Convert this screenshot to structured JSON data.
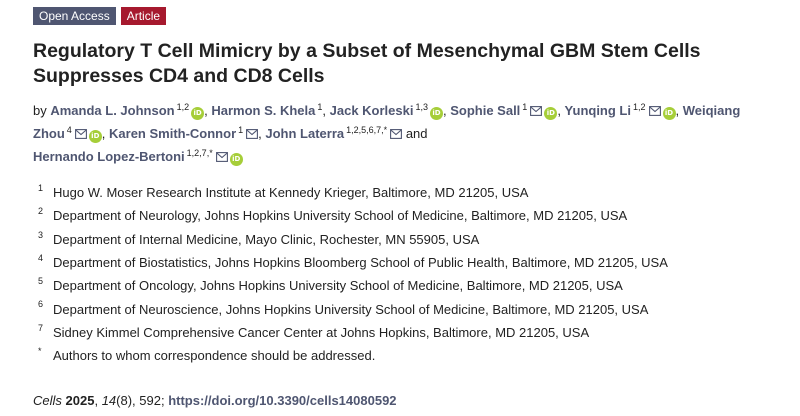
{
  "badges": {
    "open_access": "Open Access",
    "article": "Article"
  },
  "title": "Regulatory T Cell Mimicry by a Subset of Mesenchymal GBM Stem Cells Suppresses CD4 and CD8 Cells",
  "byline": {
    "by": "by",
    "and": "and",
    "authors": [
      {
        "name": "Amanda L. Johnson",
        "aff": "1,2",
        "email": false,
        "orcid": true
      },
      {
        "name": "Harmon S. Khela",
        "aff": "1",
        "email": false,
        "orcid": false
      },
      {
        "name": "Jack Korleski",
        "aff": "1,3",
        "email": false,
        "orcid": true
      },
      {
        "name": "Sophie Sall",
        "aff": "1",
        "email": true,
        "orcid": true
      },
      {
        "name": "Yunqing Li",
        "aff": "1,2",
        "email": true,
        "orcid": true
      },
      {
        "name": "Weiqiang Zhou",
        "aff": "4",
        "email": true,
        "orcid": true
      },
      {
        "name": "Karen Smith-Connor",
        "aff": "1",
        "email": true,
        "orcid": false
      },
      {
        "name": "John Laterra",
        "aff": "1,2,5,6,7,*",
        "email": true,
        "orcid": false
      },
      {
        "name": "Hernando Lopez-Bertoni",
        "aff": "1,2,7,*",
        "email": true,
        "orcid": true
      }
    ]
  },
  "affiliations": [
    {
      "num": "1",
      "text": "Hugo W. Moser Research Institute at Kennedy Krieger, Baltimore, MD 21205, USA"
    },
    {
      "num": "2",
      "text": "Department of Neurology, Johns Hopkins University School of Medicine, Baltimore, MD 21205, USA"
    },
    {
      "num": "3",
      "text": "Department of Internal Medicine, Mayo Clinic, Rochester, MN 55905, USA"
    },
    {
      "num": "4",
      "text": "Department of Biostatistics, Johns Hopkins Bloomberg School of Public Health, Baltimore, MD 21205, USA"
    },
    {
      "num": "5",
      "text": "Department of Oncology, Johns Hopkins University School of Medicine, Baltimore, MD 21205, USA"
    },
    {
      "num": "6",
      "text": "Department of Neuroscience, Johns Hopkins University School of Medicine, Baltimore, MD 21205, USA"
    },
    {
      "num": "7",
      "text": "Sidney Kimmel Comprehensive Cancer Center at Johns Hopkins, Baltimore, MD 21205, USA"
    },
    {
      "num": "*",
      "text": "Authors to whom correspondence should be addressed."
    }
  ],
  "citation": {
    "journal": "Cells",
    "year": "2025",
    "volume": "14",
    "issue": "(8)",
    "pages": ", 592; ",
    "doi": "https://doi.org/10.3390/cells14080592"
  },
  "icons": {
    "orcid_text": "iD",
    "email": "mail-icon",
    "orcid": "orcid-icon"
  },
  "colors": {
    "badge_open": "#4f5671",
    "badge_article": "#a6192e",
    "author_link": "#4f5671",
    "orcid": "#a6ce39"
  }
}
